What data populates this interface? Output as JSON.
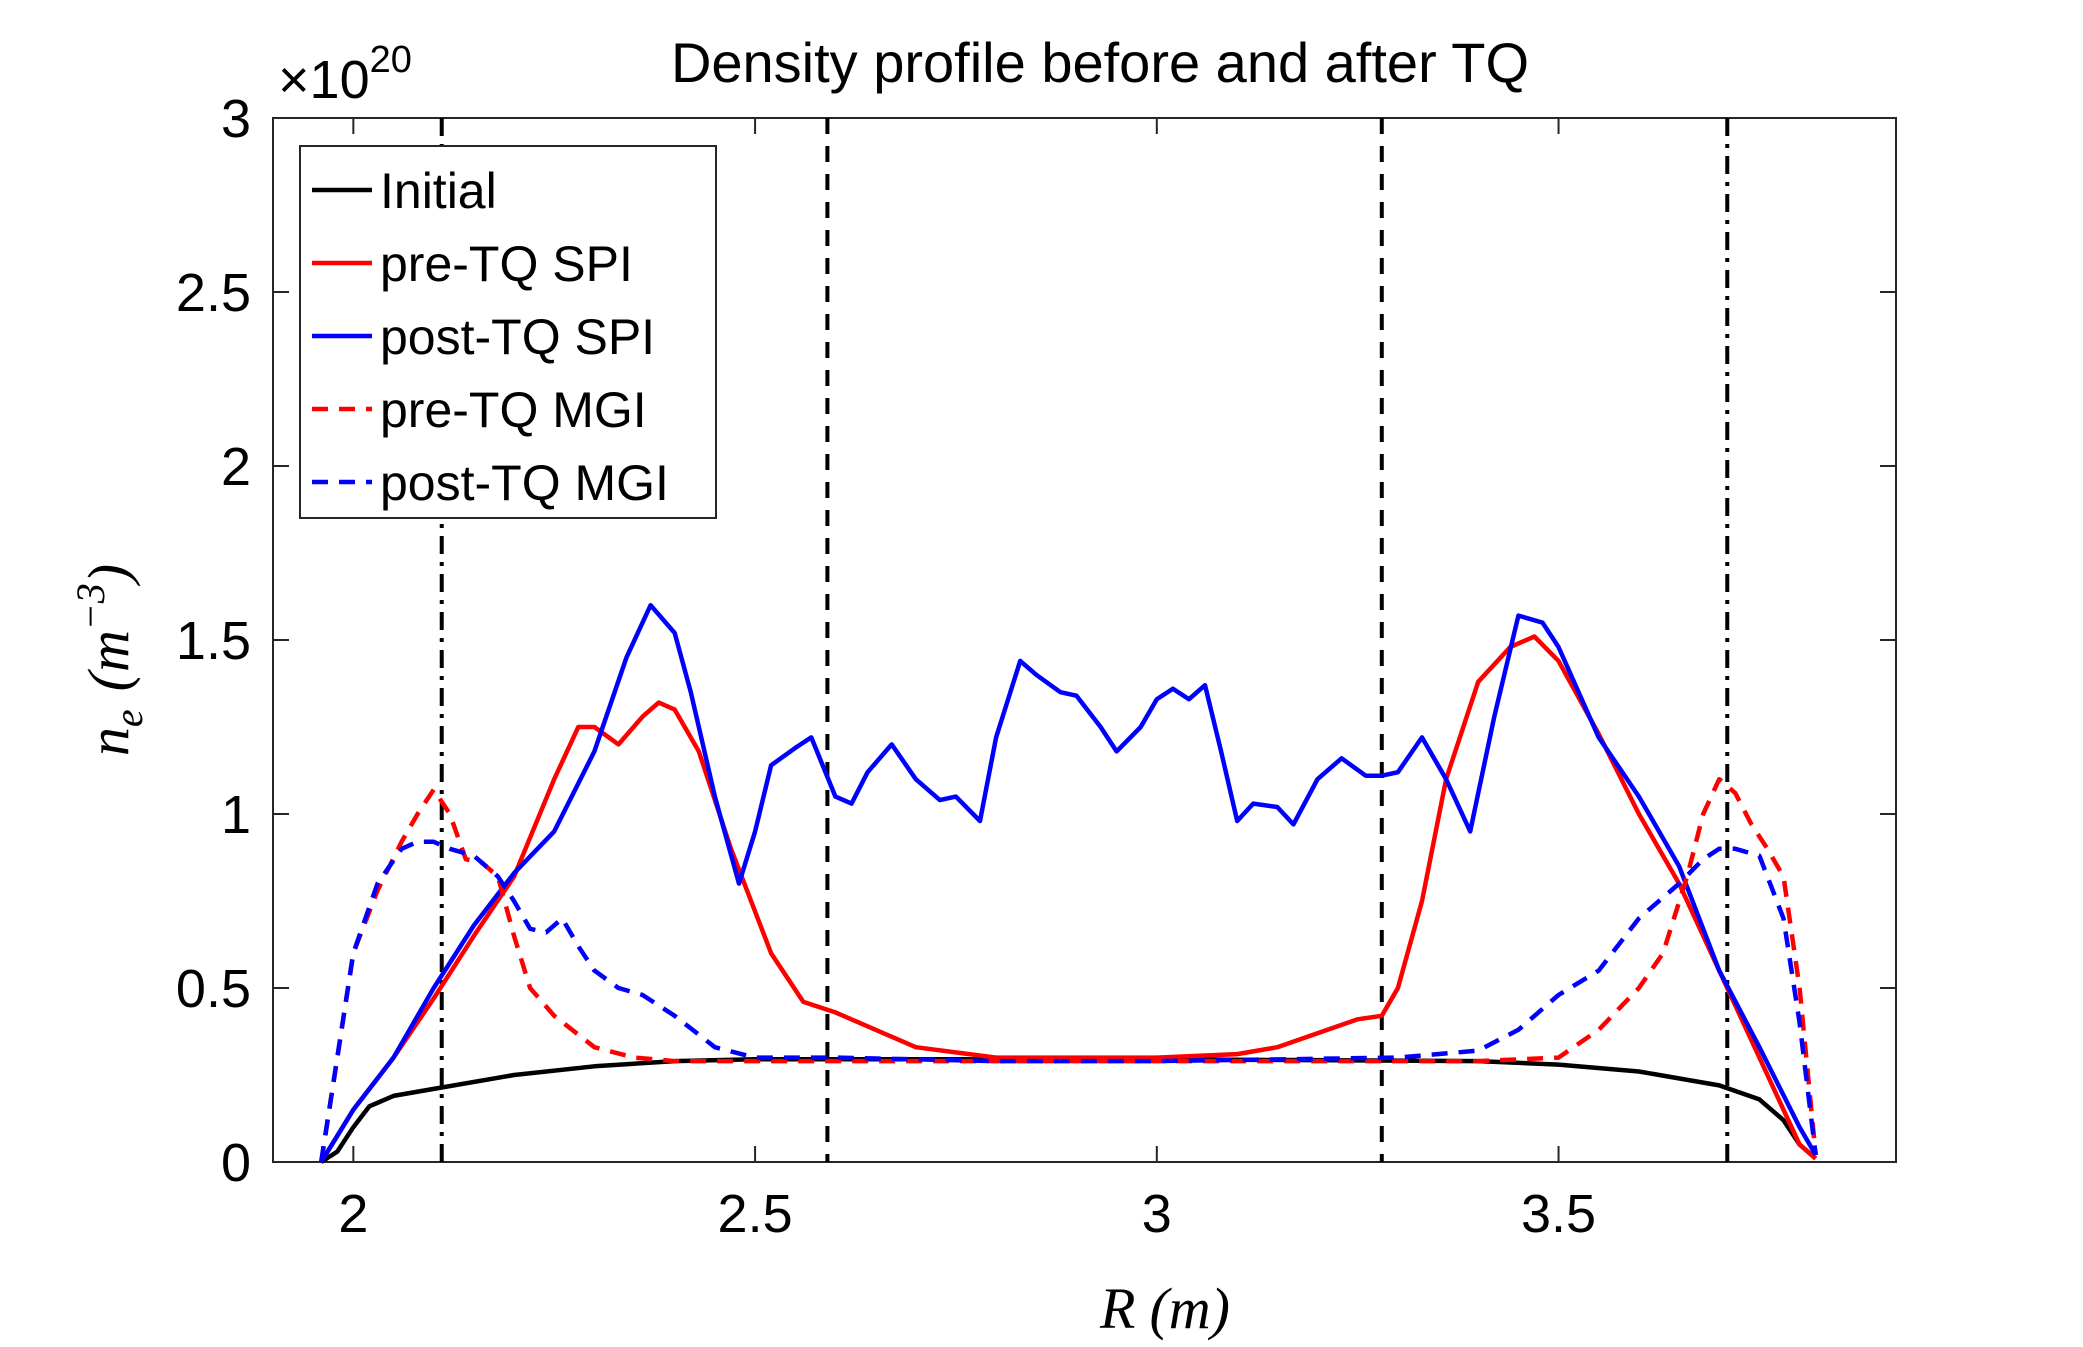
{
  "chart_data": {
    "type": "line",
    "title": "Density profile before and after TQ",
    "exponent_label": "×10",
    "exponent_power": "20",
    "xlabel": "R (m)",
    "xlabel_var": "R",
    "xlabel_unit": "(m)",
    "ylabel": "n_e (m^-3)",
    "ylabel_var": "n",
    "ylabel_sub": "e",
    "ylabel_unit_open": "(m",
    "ylabel_unit_sup": "−3",
    "ylabel_unit_close": ")",
    "xlim": [
      1.9,
      3.92
    ],
    "ylim": [
      0,
      3
    ],
    "xticks": [
      2,
      2.5,
      3,
      3.5
    ],
    "xtick_labels": [
      "2",
      "2.5",
      "3",
      "3.5"
    ],
    "yticks": [
      0,
      0.5,
      1,
      1.5,
      2,
      2.5,
      3
    ],
    "ytick_labels": [
      "0",
      "0.5",
      "1",
      "1.5",
      "2",
      "2.5",
      "3"
    ],
    "grid": false,
    "legend_position": "top-left",
    "vertical_lines": [
      {
        "x": 2.11,
        "style": "dashdot"
      },
      {
        "x": 2.59,
        "style": "dashed"
      },
      {
        "x": 3.28,
        "style": "dashed"
      },
      {
        "x": 3.71,
        "style": "dashdot"
      }
    ],
    "series": [
      {
        "name": "Initial",
        "color": "#000000",
        "dash": "solid",
        "x": [
          1.96,
          1.98,
          2.0,
          2.02,
          2.05,
          2.1,
          2.2,
          2.3,
          2.4,
          2.5,
          2.6,
          3.0,
          3.4,
          3.5,
          3.6,
          3.7,
          3.75,
          3.78,
          3.8,
          3.82
        ],
        "y": [
          0.0,
          0.03,
          0.1,
          0.16,
          0.19,
          0.21,
          0.25,
          0.275,
          0.29,
          0.295,
          0.295,
          0.295,
          0.29,
          0.28,
          0.26,
          0.22,
          0.18,
          0.12,
          0.05,
          0.01
        ]
      },
      {
        "name": "pre-TQ SPI",
        "color": "#ff0000",
        "dash": "solid",
        "x": [
          1.96,
          2.0,
          2.05,
          2.1,
          2.15,
          2.2,
          2.25,
          2.28,
          2.3,
          2.33,
          2.36,
          2.38,
          2.4,
          2.43,
          2.47,
          2.52,
          2.56,
          2.6,
          2.65,
          2.7,
          2.8,
          2.9,
          3.0,
          3.1,
          3.15,
          3.2,
          3.25,
          3.28,
          3.3,
          3.33,
          3.36,
          3.4,
          3.44,
          3.47,
          3.5,
          3.55,
          3.6,
          3.65,
          3.7,
          3.75,
          3.8,
          3.82
        ],
        "y": [
          0.0,
          0.15,
          0.3,
          0.47,
          0.65,
          0.82,
          1.1,
          1.25,
          1.25,
          1.2,
          1.28,
          1.32,
          1.3,
          1.18,
          0.9,
          0.6,
          0.46,
          0.43,
          0.38,
          0.33,
          0.3,
          0.3,
          0.3,
          0.31,
          0.33,
          0.37,
          0.41,
          0.42,
          0.5,
          0.75,
          1.1,
          1.38,
          1.48,
          1.51,
          1.44,
          1.23,
          1.0,
          0.8,
          0.55,
          0.3,
          0.05,
          0.01
        ]
      },
      {
        "name": "post-TQ SPI",
        "color": "#0000ff",
        "dash": "solid",
        "x": [
          1.96,
          2.0,
          2.05,
          2.1,
          2.15,
          2.2,
          2.25,
          2.3,
          2.34,
          2.37,
          2.4,
          2.42,
          2.45,
          2.48,
          2.5,
          2.52,
          2.55,
          2.57,
          2.6,
          2.62,
          2.64,
          2.67,
          2.7,
          2.73,
          2.75,
          2.78,
          2.8,
          2.83,
          2.85,
          2.88,
          2.9,
          2.93,
          2.95,
          2.98,
          3.0,
          3.02,
          3.04,
          3.06,
          3.08,
          3.1,
          3.12,
          3.15,
          3.17,
          3.2,
          3.23,
          3.26,
          3.28,
          3.3,
          3.33,
          3.36,
          3.39,
          3.42,
          3.45,
          3.48,
          3.5,
          3.55,
          3.6,
          3.65,
          3.7,
          3.75,
          3.8,
          3.82
        ],
        "y": [
          0.0,
          0.15,
          0.3,
          0.5,
          0.68,
          0.83,
          0.95,
          1.18,
          1.45,
          1.6,
          1.52,
          1.35,
          1.05,
          0.8,
          0.95,
          1.14,
          1.19,
          1.22,
          1.05,
          1.03,
          1.12,
          1.2,
          1.1,
          1.04,
          1.05,
          0.98,
          1.22,
          1.44,
          1.4,
          1.35,
          1.34,
          1.25,
          1.18,
          1.25,
          1.33,
          1.36,
          1.33,
          1.37,
          1.18,
          0.98,
          1.03,
          1.02,
          0.97,
          1.1,
          1.16,
          1.11,
          1.11,
          1.12,
          1.22,
          1.1,
          0.95,
          1.28,
          1.57,
          1.55,
          1.48,
          1.22,
          1.05,
          0.85,
          0.55,
          0.33,
          0.1,
          0.02
        ]
      },
      {
        "name": "pre-TQ MGI",
        "color": "#ff0000",
        "dash": "dashed",
        "x": [
          1.96,
          1.98,
          2.0,
          2.03,
          2.06,
          2.08,
          2.1,
          2.12,
          2.14,
          2.16,
          2.18,
          2.2,
          2.22,
          2.25,
          2.3,
          2.35,
          2.4,
          2.5,
          3.0,
          3.4,
          3.5,
          3.55,
          3.6,
          3.63,
          3.66,
          3.68,
          3.7,
          3.72,
          3.74,
          3.76,
          3.78,
          3.8,
          3.82
        ],
        "y": [
          0.0,
          0.3,
          0.6,
          0.78,
          0.92,
          1.0,
          1.07,
          1.0,
          0.87,
          0.86,
          0.82,
          0.65,
          0.5,
          0.42,
          0.33,
          0.3,
          0.29,
          0.29,
          0.29,
          0.29,
          0.3,
          0.38,
          0.5,
          0.6,
          0.82,
          1.0,
          1.1,
          1.06,
          0.97,
          0.9,
          0.82,
          0.5,
          0.02
        ]
      },
      {
        "name": "post-TQ MGI",
        "color": "#0000ff",
        "dash": "dashed",
        "x": [
          1.96,
          1.98,
          2.0,
          2.03,
          2.06,
          2.08,
          2.1,
          2.12,
          2.15,
          2.18,
          2.2,
          2.22,
          2.24,
          2.26,
          2.28,
          2.3,
          2.33,
          2.36,
          2.4,
          2.45,
          2.5,
          2.6,
          2.8,
          3.0,
          3.3,
          3.4,
          3.45,
          3.5,
          3.55,
          3.6,
          3.65,
          3.68,
          3.7,
          3.72,
          3.75,
          3.78,
          3.8,
          3.82
        ],
        "y": [
          0.0,
          0.3,
          0.6,
          0.8,
          0.9,
          0.92,
          0.92,
          0.9,
          0.88,
          0.82,
          0.75,
          0.67,
          0.66,
          0.7,
          0.62,
          0.55,
          0.5,
          0.48,
          0.42,
          0.33,
          0.3,
          0.3,
          0.29,
          0.29,
          0.3,
          0.32,
          0.38,
          0.48,
          0.55,
          0.7,
          0.8,
          0.87,
          0.9,
          0.9,
          0.88,
          0.7,
          0.4,
          0.02
        ]
      }
    ]
  }
}
